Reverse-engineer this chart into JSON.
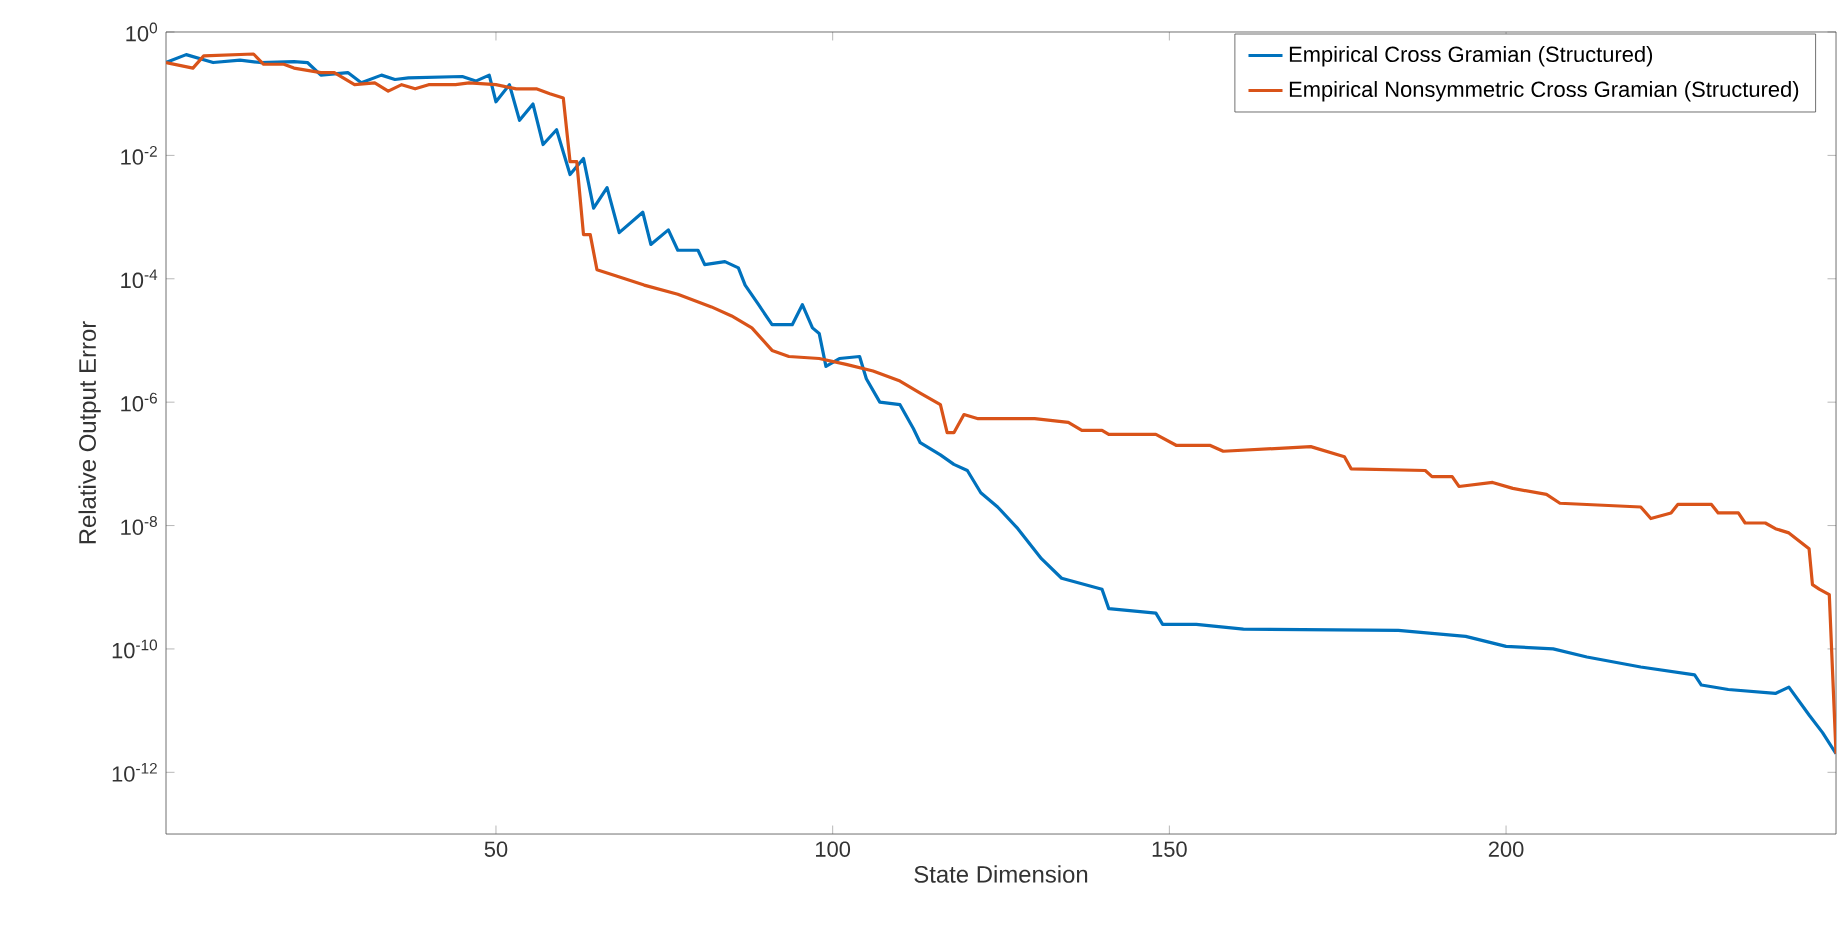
{
  "chart_data": {
    "type": "line",
    "xlabel": "State Dimension",
    "ylabel": "Relative Output Error",
    "log": "y",
    "legend": "top right",
    "grid": false,
    "marker": "none",
    "line_style": "solid",
    "xlim": [
      1,
      249
    ],
    "ylim": [
      1e-13,
      1
    ],
    "xticks": [
      50,
      100,
      150,
      200
    ],
    "yticks": [
      {
        "value": 1,
        "label": "10$^{0}$"
      },
      {
        "value": 0.01,
        "label": "10$^{-2}$"
      },
      {
        "value": 0.0001,
        "label": "10$^{-4}$"
      },
      {
        "value": 1e-06,
        "label": "10$^{-6}$"
      },
      {
        "value": 1e-08,
        "label": "10$^{-8}$"
      },
      {
        "value": 1e-10,
        "label": "10$^{-10}$"
      },
      {
        "value": 1e-12,
        "label": "10$^{-12}$"
      }
    ],
    "series": [
      {
        "name": "Empirical Cross Gramian (Structured)",
        "color": "#0072bd",
        "x": [
          1,
          4,
          8,
          12,
          15,
          20,
          22,
          24,
          28,
          30,
          33,
          35,
          37,
          45,
          47,
          49,
          50,
          52,
          53.5,
          55.5,
          57,
          59,
          61,
          63,
          64.5,
          66.5,
          68.3,
          71.8,
          73,
          75.6,
          77,
          80,
          81,
          84,
          86,
          87,
          89,
          91,
          94,
          95.5,
          97,
          98,
          99,
          101,
          104,
          105,
          107,
          110,
          112,
          113,
          116,
          118,
          120,
          122,
          124.5,
          127.5,
          131,
          134,
          140,
          141,
          148,
          149,
          154,
          161,
          184,
          194,
          200,
          207,
          212,
          220,
          228,
          229,
          233,
          240,
          242,
          245,
          247,
          249
        ],
        "values": [
          0.32,
          0.43,
          0.32,
          0.35,
          0.32,
          0.33,
          0.32,
          0.2,
          0.22,
          0.15,
          0.2,
          0.17,
          0.18,
          0.19,
          0.16,
          0.2,
          0.074,
          0.14,
          0.037,
          0.068,
          0.015,
          0.026,
          0.0049,
          0.0089,
          0.0014,
          0.003,
          0.00056,
          0.0012,
          0.00036,
          0.00062,
          0.00029,
          0.00029,
          0.00017,
          0.00019,
          0.00015,
          7.9e-05,
          3.8e-05,
          1.8e-05,
          1.8e-05,
          3.8e-05,
          1.6e-05,
          1.3e-05,
          3.8e-06,
          5.1e-06,
          5.5e-06,
          2.4e-06,
          1e-06,
          9.1e-07,
          3.7e-07,
          2.2e-07,
          1.4e-07,
          9.8e-08,
          7.8e-08,
          3.4e-08,
          2e-08,
          8.9e-09,
          2.9e-09,
          1.4e-09,
          9.3e-10,
          4.5e-10,
          3.8e-10,
          2.5e-10,
          2.5e-10,
          2.1e-10,
          2e-10,
          1.6e-10,
          1.1e-10,
          1e-10,
          7.4e-11,
          5.1e-11,
          3.8e-11,
          2.6e-11,
          2.2e-11,
          1.9e-11,
          2.4e-11,
          8.5e-12,
          4.4e-12,
          2e-12
        ]
      },
      {
        "name": "Empirical Nonsymmetric Cross Gramian (Structured)",
        "color": "#d95319",
        "x": [
          1,
          5,
          6.6,
          14,
          15.5,
          18.5,
          20,
          24,
          26,
          29,
          32,
          34,
          36,
          38,
          40,
          44,
          46,
          50,
          53,
          56,
          58,
          60,
          61,
          62,
          63,
          64,
          65,
          68,
          72,
          77,
          82,
          85,
          88,
          91,
          93.5,
          98,
          102,
          106,
          110,
          113,
          116,
          117,
          118,
          119.5,
          121.6,
          130,
          135,
          137,
          140,
          141,
          148,
          151,
          156,
          158,
          171,
          176,
          177,
          188,
          189,
          192,
          193,
          198,
          201,
          206,
          208,
          220,
          221.5,
          224.5,
          225.5,
          230.5,
          231.5,
          234.5,
          235.5,
          238.5,
          240,
          242,
          245,
          245.5,
          246.5,
          248,
          249
        ],
        "values": [
          0.32,
          0.26,
          0.41,
          0.44,
          0.3,
          0.3,
          0.26,
          0.22,
          0.22,
          0.14,
          0.15,
          0.11,
          0.14,
          0.12,
          0.14,
          0.14,
          0.15,
          0.14,
          0.12,
          0.12,
          0.1,
          0.085,
          0.0079,
          0.0079,
          0.00052,
          0.00052,
          0.00014,
          0.00011,
          7.9e-05,
          5.6e-05,
          3.5e-05,
          2.5e-05,
          1.6e-05,
          6.9e-06,
          5.5e-06,
          5.1e-06,
          4.1e-06,
          3.2e-06,
          2.2e-06,
          1.4e-06,
          9.1e-07,
          3.2e-07,
          3.2e-07,
          6.3e-07,
          5.4e-07,
          5.4e-07,
          4.7e-07,
          3.5e-07,
          3.5e-07,
          3e-07,
          3e-07,
          2e-07,
          2e-07,
          1.6e-07,
          1.9e-07,
          1.3e-07,
          8.3e-08,
          7.8e-08,
          6.2e-08,
          6.2e-08,
          4.3e-08,
          5e-08,
          4e-08,
          3.2e-08,
          2.3e-08,
          2e-08,
          1.3e-08,
          1.6e-08,
          2.2e-08,
          2.2e-08,
          1.6e-08,
          1.6e-08,
          1.1e-08,
          1.1e-08,
          8.9e-09,
          7.6e-09,
          4.2e-09,
          1.1e-09,
          9.3e-10,
          7.6e-10,
          2e-12
        ]
      }
    ]
  }
}
